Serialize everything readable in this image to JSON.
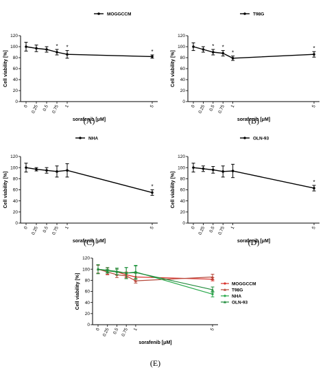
{
  "colors": {
    "MOGGCCM": "#d9302a",
    "T98G": "#b5483a",
    "NHA": "#27a84a",
    "OLN-93": "#1f8a3a",
    "black": "#000000"
  },
  "chart_data": [
    {
      "type": "line",
      "panel_label": "(A)",
      "x": [
        0,
        0.25,
        0.5,
        0.75,
        1,
        5
      ],
      "xticks": [
        "0",
        "0.25",
        "0.5",
        "0.75",
        "1",
        "5"
      ],
      "xlabel": "sorafenib [μM]",
      "ylabel": "Cell viability [%]",
      "ylim": [
        0,
        120
      ],
      "yticks": [
        "0",
        "20",
        "40",
        "60",
        "80",
        "100",
        "120"
      ],
      "legend_position": "top-right",
      "series": [
        {
          "name": "MOGGCCM",
          "values": [
            100,
            97,
            95,
            90,
            86,
            82
          ],
          "errors": [
            8,
            6,
            5,
            5,
            7,
            3
          ],
          "significant": [
            false,
            false,
            false,
            true,
            true,
            true
          ]
        }
      ],
      "significance_marker": "*"
    },
    {
      "type": "line",
      "panel_label": "(B)",
      "x": [
        0,
        0.25,
        0.5,
        0.75,
        1,
        5
      ],
      "xticks": [
        "0",
        "0.25",
        "0.5",
        "0.75",
        "1",
        "5"
      ],
      "xlabel": "sorafenib [μM]",
      "ylabel": "Cell viability [%]",
      "ylim": [
        0,
        120
      ],
      "yticks": [
        "0",
        "20",
        "40",
        "60",
        "80",
        "100",
        "120"
      ],
      "legend_position": "top-right",
      "series": [
        {
          "name": "T98G",
          "values": [
            100,
            95,
            90,
            88,
            79,
            86
          ],
          "errors": [
            7,
            5,
            5,
            5,
            4,
            5
          ],
          "significant": [
            false,
            false,
            true,
            true,
            true,
            true
          ]
        }
      ],
      "significance_marker": "*"
    },
    {
      "type": "line",
      "panel_label": "(C)",
      "x": [
        0,
        0.25,
        0.5,
        0.75,
        1,
        5
      ],
      "xticks": [
        "0",
        "0.25",
        "0.5",
        "0.75",
        "1",
        "5"
      ],
      "xlabel": "sorafenib [μM]",
      "ylabel": "Cell viability [%]",
      "ylim": [
        0,
        120
      ],
      "yticks": [
        "0",
        "20",
        "40",
        "60",
        "80",
        "100",
        "120"
      ],
      "legend_position": "top-right",
      "series": [
        {
          "name": "NHA",
          "values": [
            100,
            97,
            95,
            93,
            95,
            55
          ],
          "errors": [
            8,
            3,
            5,
            10,
            12,
            5
          ],
          "significant": [
            false,
            false,
            false,
            false,
            false,
            true
          ]
        }
      ],
      "significance_marker": "*"
    },
    {
      "type": "line",
      "panel_label": "(D)",
      "x": [
        0,
        0.25,
        0.5,
        0.75,
        1,
        5
      ],
      "xticks": [
        "0",
        "0.25",
        "0.5",
        "0.75",
        "1",
        "5"
      ],
      "xlabel": "sorafenib [μM]",
      "ylabel": "Cell viability [%]",
      "ylim": [
        0,
        120
      ],
      "yticks": [
        "0",
        "20",
        "40",
        "60",
        "80",
        "100",
        "120"
      ],
      "legend_position": "top-right",
      "series": [
        {
          "name": "OLN-93",
          "values": [
            100,
            98,
            96,
            93,
            94,
            63
          ],
          "errors": [
            8,
            5,
            6,
            10,
            12,
            5
          ],
          "significant": [
            false,
            false,
            false,
            false,
            false,
            true
          ]
        }
      ],
      "significance_marker": "*"
    },
    {
      "type": "line",
      "panel_label": "(E)",
      "x": [
        0,
        0.25,
        0.5,
        0.75,
        1,
        5
      ],
      "xticks": [
        "0",
        "0.25",
        "0.5",
        "0.75",
        "1",
        "5"
      ],
      "xlabel": "sorafenib [μM]",
      "ylabel": "Cell viability [%]",
      "ylim": [
        0,
        120
      ],
      "yticks": [
        "0",
        "20",
        "40",
        "60",
        "80",
        "100",
        "120"
      ],
      "legend_position": "right",
      "series": [
        {
          "name": "MOGGCCM",
          "values": [
            100,
            97,
            95,
            90,
            86,
            82
          ],
          "errors": [
            8,
            6,
            5,
            5,
            7,
            3
          ]
        },
        {
          "name": "T98G",
          "values": [
            100,
            95,
            90,
            88,
            79,
            86
          ],
          "errors": [
            7,
            5,
            5,
            5,
            4,
            5
          ]
        },
        {
          "name": "NHA",
          "values": [
            100,
            97,
            95,
            93,
            95,
            55
          ],
          "errors": [
            8,
            3,
            5,
            10,
            12,
            5
          ]
        },
        {
          "name": "OLN-93",
          "values": [
            100,
            98,
            96,
            93,
            94,
            63
          ],
          "errors": [
            8,
            5,
            6,
            10,
            12,
            5
          ]
        }
      ]
    }
  ]
}
